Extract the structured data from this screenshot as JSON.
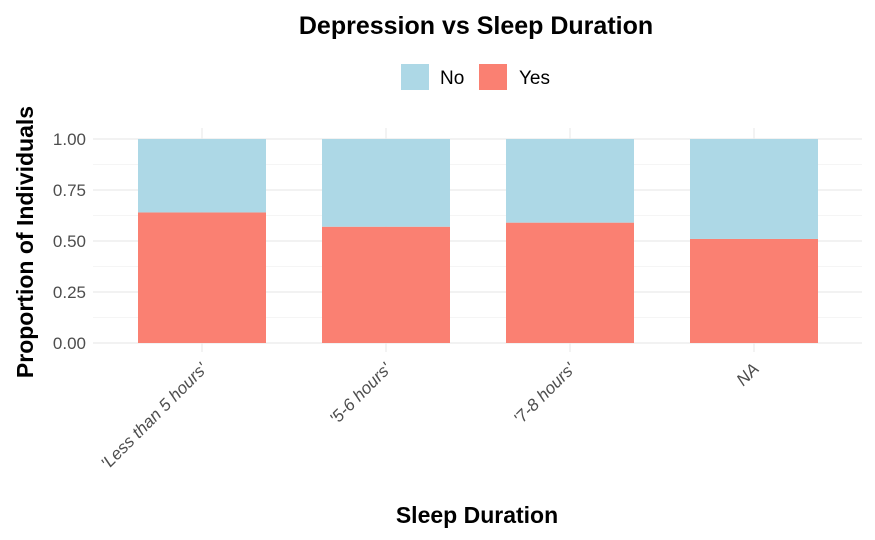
{
  "chart_data": {
    "type": "bar",
    "stacked": true,
    "title": "Depression vs Sleep Duration",
    "xlabel": "Sleep Duration",
    "ylabel": "Proportion of Individuals",
    "categories": [
      "'Less than 5 hours'",
      "'5-6 hours'",
      "'7-8 hours'",
      "NA"
    ],
    "series": [
      {
        "name": "Yes",
        "color": "#FA8072",
        "values": [
          0.64,
          0.57,
          0.59,
          0.51
        ]
      },
      {
        "name": "No",
        "color": "#ADD8E6",
        "values": [
          0.36,
          0.43,
          0.41,
          0.49
        ]
      }
    ],
    "legend": {
      "position": "top",
      "order": [
        "No",
        "Yes"
      ]
    },
    "ylim": [
      0,
      1
    ],
    "yticks": [
      "0.00",
      "0.25",
      "0.50",
      "0.75",
      "1.00"
    ],
    "ytick_values": [
      0,
      0.25,
      0.5,
      0.75,
      1
    ],
    "grid": true
  }
}
